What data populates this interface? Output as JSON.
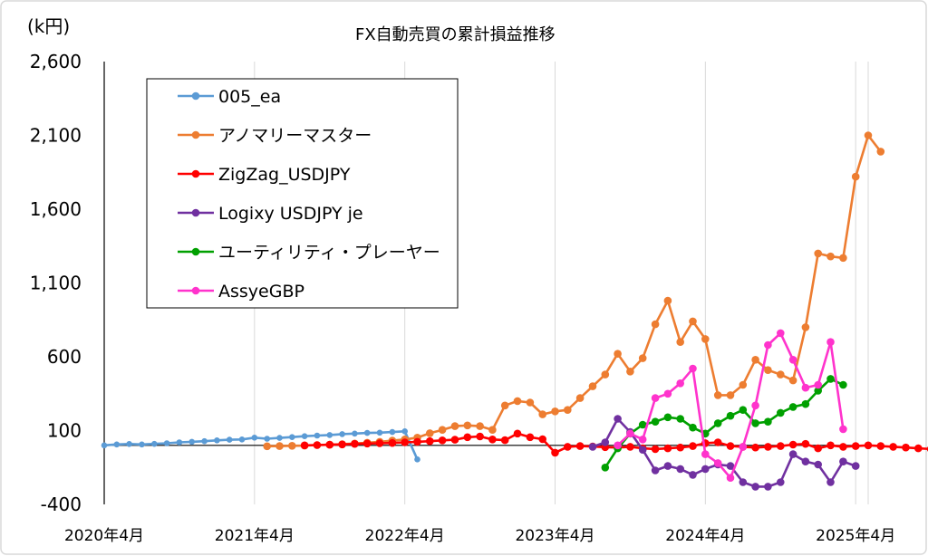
{
  "chart_data": {
    "type": "line",
    "title": "FX自動売買の累計損益推移",
    "ylabel": "(k円)",
    "xlabel": "",
    "ylim": [
      -400,
      2600
    ],
    "yticks": [
      -400,
      100,
      600,
      1100,
      1600,
      2100,
      2600
    ],
    "ytick_labels": [
      "-400",
      "100",
      "600",
      "1,100",
      "1,600",
      "2,100",
      "2,600"
    ],
    "xtick_labels": [
      "2020年4月",
      "2021年4月",
      "2022年4月",
      "2023年4月",
      "2024年4月",
      "2025年4月"
    ],
    "x_start": "2020-04",
    "x_end": "2025-05",
    "grid": "vertical",
    "legend_position": "top-left",
    "colors": {
      "005_ea": "#5b9bd5",
      "anomaly": "#ed7d31",
      "zigzag": "#ff0000",
      "logixy": "#7030a0",
      "utility": "#00a000",
      "assye": "#ff33cc",
      "negative_tick": "#ff0000"
    },
    "series": [
      {
        "name": "005_ea",
        "key": "005_ea",
        "start": "2020-04",
        "values": [
          0,
          6,
          9,
          6,
          10,
          14,
          20,
          24,
          28,
          34,
          38,
          40,
          52,
          45,
          50,
          56,
          62,
          66,
          70,
          76,
          80,
          84,
          86,
          90,
          95,
          -95
        ]
      },
      {
        "name": "アノマリーマスター",
        "key": "anomaly",
        "start": "2021-05",
        "values": [
          -6,
          -5,
          -3,
          -2,
          2,
          4,
          8,
          12,
          18,
          24,
          32,
          40,
          52,
          82,
          105,
          130,
          135,
          130,
          105,
          270,
          300,
          290,
          210,
          230,
          240,
          320,
          400,
          480,
          620,
          500,
          590,
          820,
          980,
          700,
          840,
          720,
          340,
          340,
          410,
          580,
          510,
          480,
          440,
          800,
          1300,
          1280,
          1270,
          1820,
          2100,
          1990
        ]
      },
      {
        "name": "ZigZag_USDJPY",
        "key": "zigzag",
        "start": "2021-08",
        "values": [
          0,
          2,
          4,
          6,
          10,
          12,
          14,
          16,
          20,
          24,
          28,
          34,
          38,
          55,
          60,
          40,
          35,
          80,
          55,
          42,
          -50,
          -10,
          -5,
          -8,
          -12,
          -15,
          -10,
          -20,
          -25,
          -20,
          -15,
          -5,
          15,
          20,
          -5,
          -10,
          -15,
          -10,
          -5,
          5,
          10,
          -20,
          0,
          -10,
          -5,
          0,
          -5,
          -10,
          -15,
          -20,
          -25
        ]
      },
      {
        "name": "Logixy USDJPY je",
        "key": "logixy",
        "start": "2023-07",
        "values": [
          -10,
          20,
          180,
          90,
          -30,
          -170,
          -140,
          -160,
          -200,
          -160,
          -130,
          -140,
          -250,
          -280,
          -280,
          -250,
          -60,
          -110,
          -130,
          -250,
          -110,
          -140
        ]
      },
      {
        "name": "ユーティリティ・プレーヤー",
        "key": "utility",
        "start": "2023-08",
        "values": [
          -150,
          -20,
          80,
          140,
          160,
          190,
          180,
          120,
          80,
          150,
          200,
          240,
          150,
          160,
          220,
          260,
          280,
          370,
          450,
          410
        ]
      },
      {
        "name": "AssyeGBP",
        "key": "assye",
        "start": "2023-09",
        "values": [
          0,
          80,
          40,
          320,
          350,
          420,
          520,
          -60,
          -120,
          -220,
          -10,
          270,
          680,
          760,
          580,
          390,
          410,
          700,
          110
        ]
      }
    ]
  }
}
